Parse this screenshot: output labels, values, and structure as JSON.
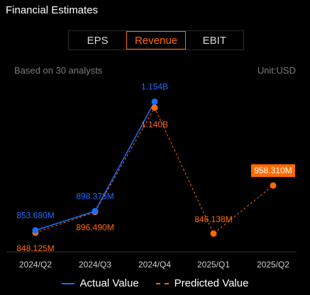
{
  "header": {
    "title": "Financial Estimates"
  },
  "tabs": [
    {
      "label": "EPS",
      "active": false
    },
    {
      "label": "Revenue",
      "active": true
    },
    {
      "label": "EBIT",
      "active": false
    }
  ],
  "meta": {
    "analysts": "Based on 30 analysts",
    "unit": "Unit:USD"
  },
  "colors": {
    "actual": "#1a6dff",
    "predicted": "#ff6a00",
    "axis": "#333333",
    "tick": "#cfcfcf"
  },
  "chart_data": {
    "type": "line",
    "categories": [
      "2024/Q2",
      "2024/Q3",
      "2024/Q4",
      "2025/Q1",
      "2025/Q2"
    ],
    "ylim": [
      0.82,
      1.18
    ],
    "series": [
      {
        "name": "Actual Value",
        "values": [
          0.85368,
          0.898373,
          1.154,
          null,
          null
        ],
        "labels": [
          "853.680M",
          "898.373M",
          "1.154B",
          "",
          ""
        ]
      },
      {
        "name": "Predicted Value",
        "values": [
          0.848125,
          0.89649,
          1.14,
          0.846138,
          0.95831
        ],
        "labels": [
          "848.125M",
          "896.490M",
          "1.140B",
          "846.138M",
          "958.310M"
        ]
      }
    ]
  },
  "legend": {
    "actual": "Actual Value",
    "predicted": "Predicted Value"
  }
}
